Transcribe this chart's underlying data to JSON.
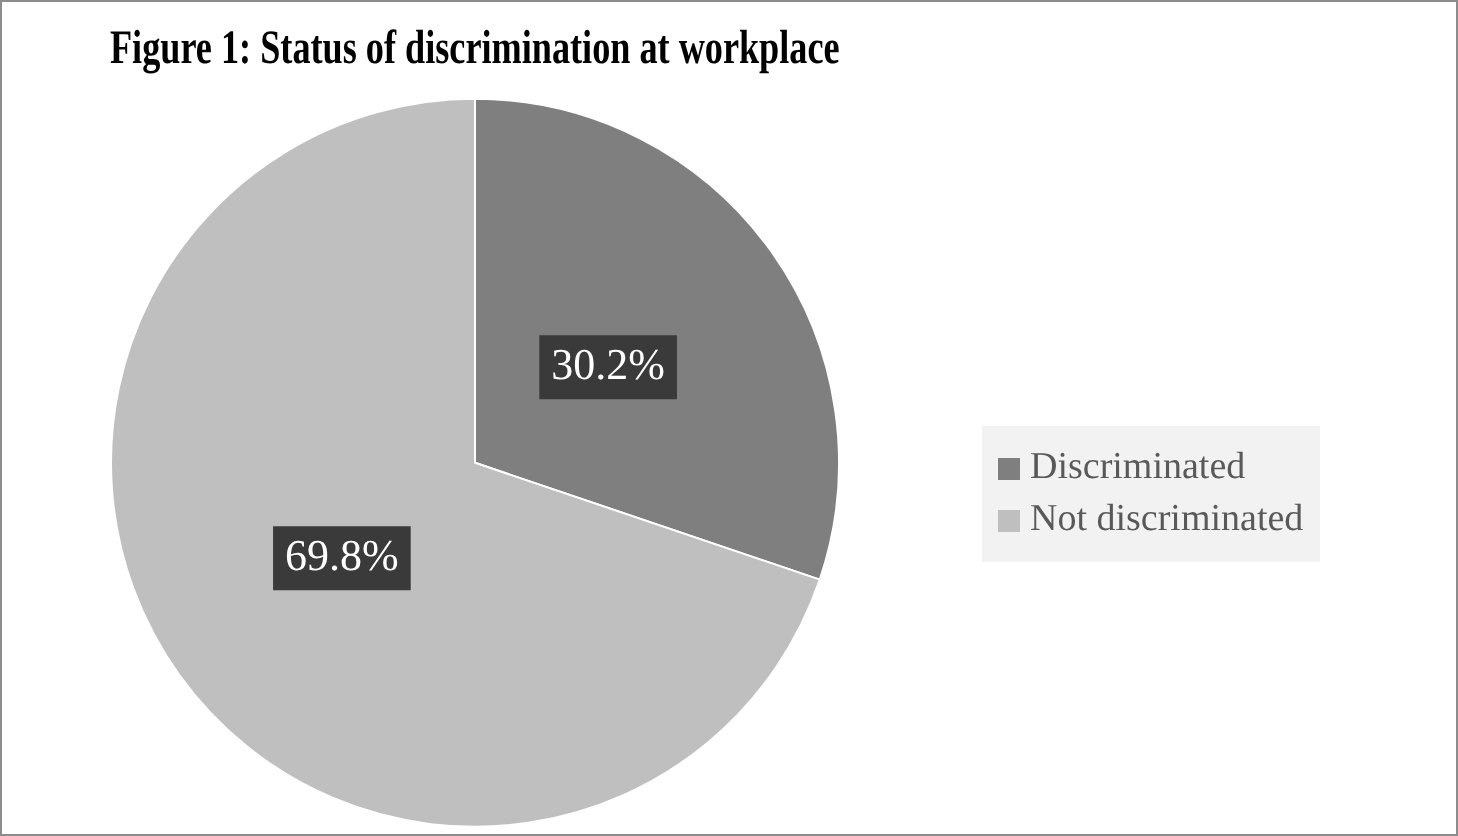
{
  "chart_data": {
    "type": "pie",
    "title": "Figure 1: Status of discrimination at workplace",
    "categories": [
      "Discriminated",
      "Not discriminated"
    ],
    "values": [
      30.2,
      69.8
    ],
    "colors": [
      "#7f7f7f",
      "#bfbfbf"
    ],
    "value_labels": [
      "30.2%",
      "69.8%"
    ],
    "legend": "right"
  }
}
